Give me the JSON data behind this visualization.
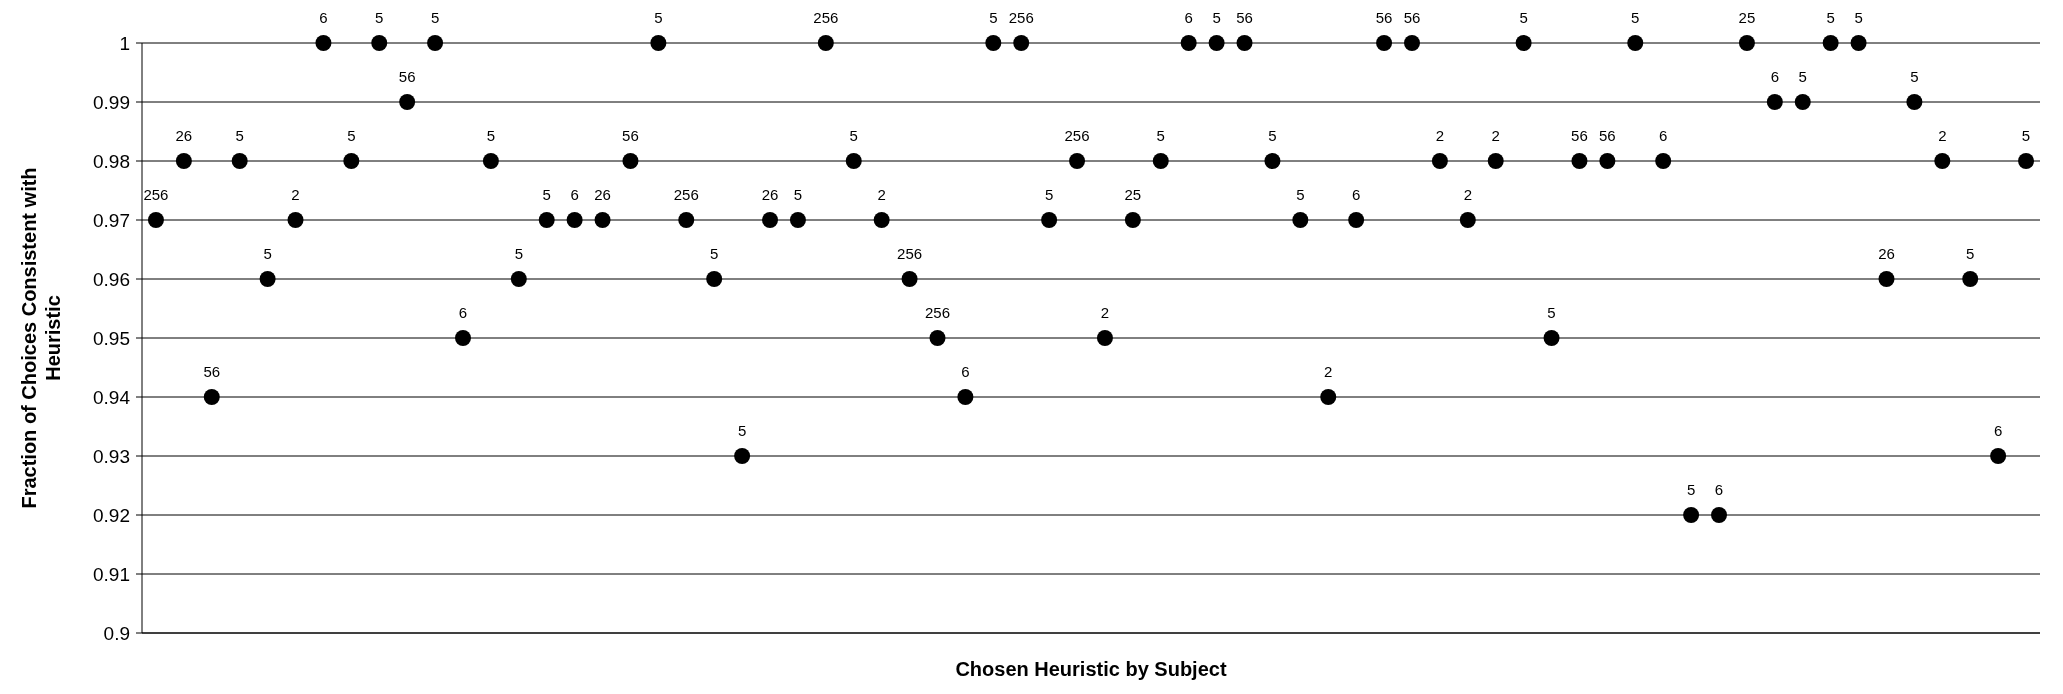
{
  "chart_data": {
    "type": "scatter",
    "xlabel": "Chosen Heuristic by Subject",
    "ylabel": "Fraction of Choices Consistent with Heuristic",
    "categories": [
      null,
      null,
      null,
      null,
      null,
      null,
      null,
      null,
      null,
      null,
      null,
      null,
      null,
      null,
      null,
      null,
      null,
      null,
      null,
      null,
      null,
      null,
      null,
      null,
      null,
      null,
      null,
      null,
      null,
      null,
      null,
      null,
      null,
      null,
      null,
      null,
      null,
      null,
      null,
      null,
      null,
      null,
      null,
      null,
      null,
      null,
      null,
      null,
      null,
      null,
      null,
      null,
      null,
      null,
      null,
      null,
      null,
      null,
      null,
      null,
      null,
      null,
      null,
      null,
      null,
      null,
      null,
      null
    ],
    "series": [
      {
        "name": "256",
        "color": "#000000",
        "values": [
          0.97,
          null,
          null,
          null,
          null,
          null,
          null,
          null,
          null,
          null,
          null,
          null,
          null,
          null,
          null,
          null,
          null,
          null,
          null,
          0.97,
          null,
          null,
          null,
          null,
          1,
          null,
          null,
          0.96,
          0.95,
          null,
          null,
          1,
          null,
          0.98,
          null,
          null,
          null,
          null,
          null,
          null,
          null,
          null,
          null,
          null,
          null,
          null,
          null,
          null,
          null,
          null,
          null,
          null,
          null,
          null,
          null,
          null,
          null,
          null,
          null,
          null,
          null,
          null,
          null,
          null,
          null,
          null,
          null,
          null
        ]
      },
      {
        "name": "26",
        "color": "#000000",
        "values": [
          null,
          0.98,
          null,
          null,
          null,
          null,
          null,
          null,
          null,
          null,
          null,
          null,
          null,
          null,
          null,
          null,
          0.97,
          null,
          null,
          null,
          null,
          null,
          0.97,
          null,
          null,
          null,
          null,
          null,
          null,
          null,
          null,
          null,
          null,
          null,
          null,
          null,
          null,
          null,
          null,
          null,
          null,
          null,
          null,
          null,
          null,
          null,
          null,
          null,
          null,
          null,
          null,
          null,
          null,
          null,
          null,
          null,
          null,
          null,
          null,
          null,
          null,
          null,
          0.96,
          null,
          null,
          null,
          null,
          null
        ]
      },
      {
        "name": "56",
        "color": "#000000",
        "values": [
          null,
          null,
          0.94,
          null,
          null,
          null,
          null,
          null,
          null,
          0.99,
          null,
          null,
          null,
          null,
          null,
          null,
          null,
          0.98,
          null,
          null,
          null,
          null,
          null,
          null,
          null,
          null,
          null,
          null,
          null,
          null,
          null,
          null,
          null,
          null,
          null,
          null,
          null,
          null,
          null,
          1,
          null,
          null,
          null,
          null,
          1,
          1,
          null,
          null,
          null,
          null,
          null,
          0.98,
          0.98,
          null,
          null,
          null,
          null,
          null,
          null,
          null,
          null,
          null,
          null,
          null,
          null,
          null,
          null,
          null
        ]
      },
      {
        "name": "5",
        "color": "#000000",
        "values": [
          null,
          null,
          null,
          0.98,
          0.96,
          null,
          null,
          0.98,
          1,
          null,
          1,
          null,
          0.98,
          0.96,
          0.97,
          null,
          null,
          null,
          1,
          null,
          0.96,
          0.93,
          null,
          0.97,
          null,
          0.98,
          null,
          null,
          null,
          null,
          1,
          null,
          0.97,
          null,
          null,
          null,
          0.98,
          null,
          1,
          null,
          0.98,
          0.97,
          null,
          null,
          null,
          null,
          null,
          null,
          null,
          1,
          0.95,
          null,
          null,
          1,
          null,
          0.92,
          null,
          null,
          null,
          0.99,
          1,
          1,
          null,
          0.99,
          null,
          0.96,
          null,
          0.98
        ]
      },
      {
        "name": "2",
        "color": "#000000",
        "values": [
          null,
          null,
          null,
          null,
          null,
          0.97,
          null,
          null,
          null,
          null,
          null,
          null,
          null,
          null,
          null,
          null,
          null,
          null,
          null,
          null,
          null,
          null,
          null,
          null,
          null,
          null,
          0.97,
          null,
          null,
          null,
          null,
          null,
          null,
          null,
          0.95,
          null,
          null,
          null,
          null,
          null,
          null,
          null,
          0.94,
          null,
          null,
          null,
          0.98,
          0.97,
          0.98,
          null,
          null,
          null,
          null,
          null,
          null,
          null,
          null,
          null,
          null,
          null,
          null,
          null,
          null,
          null,
          0.98,
          null,
          null,
          null
        ]
      },
      {
        "name": "6",
        "color": "#000000",
        "values": [
          null,
          null,
          null,
          null,
          null,
          null,
          1,
          null,
          null,
          null,
          null,
          0.95,
          null,
          null,
          null,
          0.97,
          null,
          null,
          null,
          null,
          null,
          null,
          null,
          null,
          null,
          null,
          null,
          null,
          null,
          0.94,
          null,
          null,
          null,
          null,
          null,
          null,
          null,
          1,
          null,
          null,
          null,
          null,
          null,
          0.97,
          null,
          null,
          null,
          null,
          null,
          null,
          null,
          null,
          null,
          null,
          0.98,
          null,
          0.92,
          null,
          0.99,
          null,
          null,
          null,
          null,
          null,
          null,
          null,
          0.93,
          null
        ]
      },
      {
        "name": "25",
        "color": "#000000",
        "values": [
          null,
          null,
          null,
          null,
          null,
          null,
          null,
          null,
          null,
          null,
          null,
          null,
          null,
          null,
          null,
          null,
          null,
          null,
          null,
          null,
          null,
          null,
          null,
          null,
          null,
          null,
          null,
          null,
          null,
          null,
          null,
          null,
          null,
          null,
          null,
          0.97,
          null,
          null,
          null,
          null,
          null,
          null,
          null,
          null,
          null,
          null,
          null,
          null,
          null,
          null,
          null,
          null,
          null,
          null,
          null,
          null,
          null,
          1,
          null,
          null,
          null,
          null,
          null,
          null,
          null,
          null,
          null,
          null
        ]
      }
    ],
    "ylim": [
      0.9,
      1
    ],
    "yticks": [
      0.9,
      0.91,
      0.92,
      0.93,
      0.94,
      0.95,
      0.96,
      0.97,
      0.98,
      0.99,
      1
    ],
    "grid": "y",
    "marker": "circle"
  }
}
